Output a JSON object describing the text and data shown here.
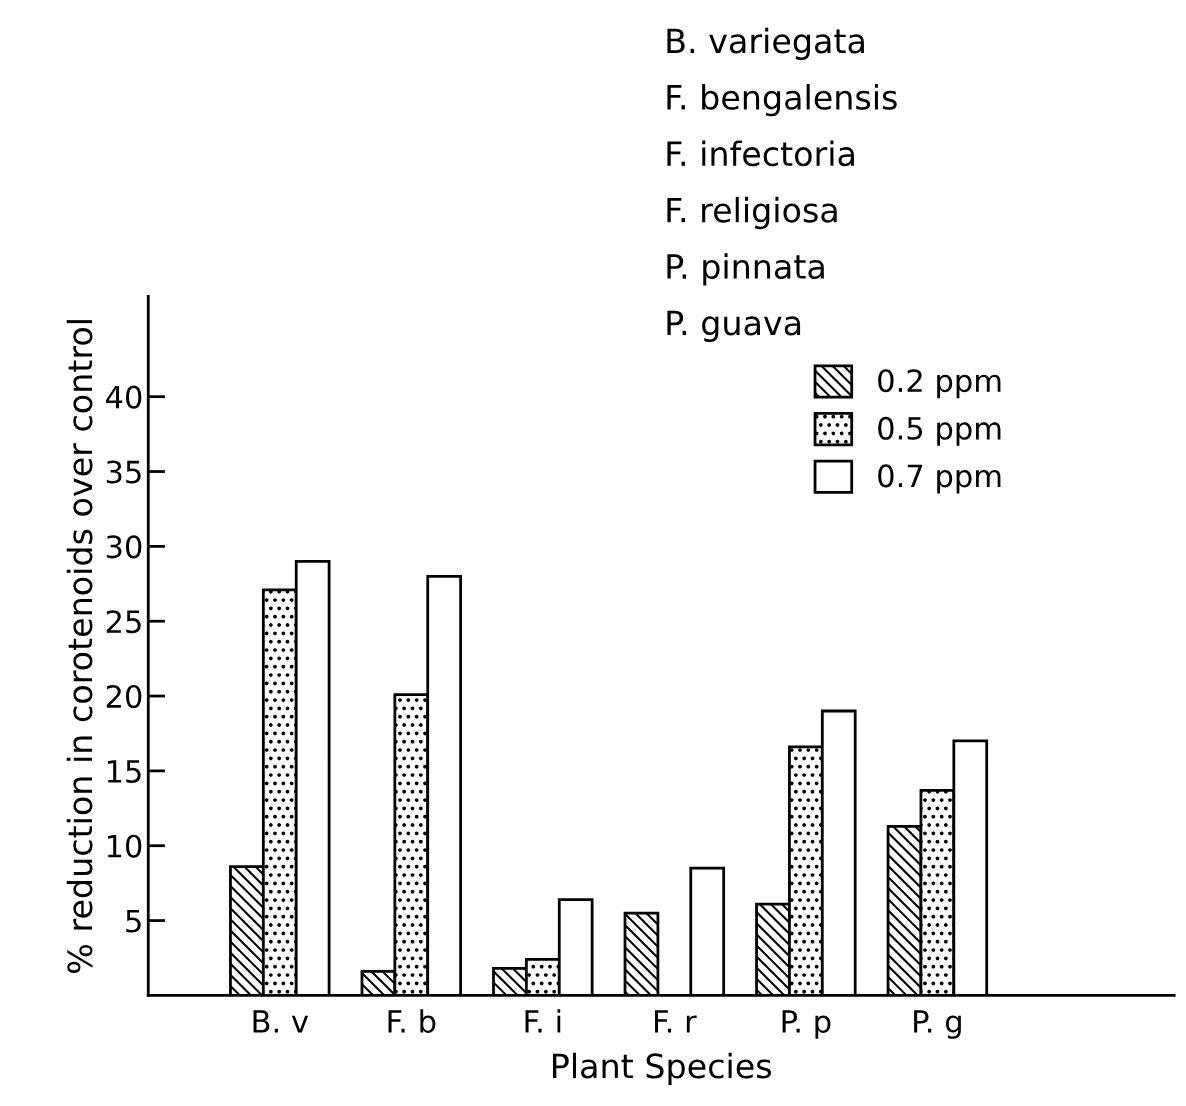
{
  "chart_data": {
    "type": "bar",
    "xlabel": "Plant Species",
    "ylabel": "% reduction in corotenoids over control",
    "categories": [
      "B. v",
      "F. b",
      "F. i",
      "F. r",
      "P. p",
      "P. g"
    ],
    "series": [
      {
        "name": "0.2 ppm",
        "color": "#000000",
        "values": [
          8.6,
          1.6,
          1.8,
          5.5,
          6.1,
          11.3
        ]
      },
      {
        "name": "0.5 ppm",
        "color": "#000000",
        "values": [
          27.1,
          20.1,
          2.4,
          null,
          16.6,
          13.7
        ]
      },
      {
        "name": "0.7 ppm",
        "color": "#ffffff",
        "values": [
          29.0,
          28.0,
          6.4,
          8.5,
          19.0,
          17.0
        ]
      }
    ],
    "ylim": [
      0,
      46.7
    ],
    "yticks": [
      5,
      10,
      15,
      20,
      25,
      30,
      35,
      40
    ],
    "legend": "top right",
    "grid": false,
    "annotations": [
      "B. variegata",
      "F. bengalensis",
      "F. infectoria",
      "F. religiosa",
      "P. pinnata",
      "P. guava"
    ]
  }
}
